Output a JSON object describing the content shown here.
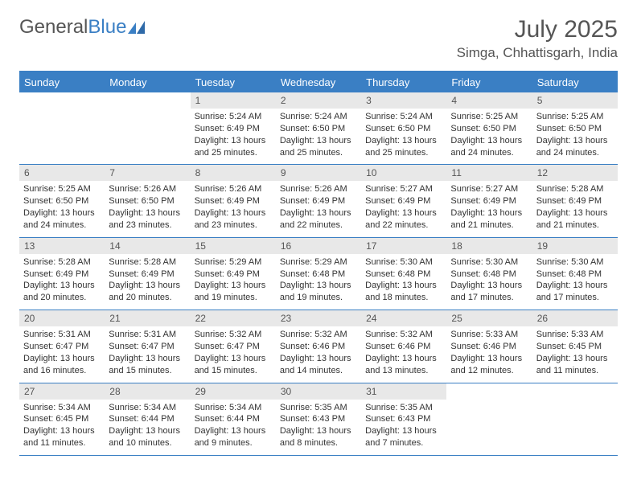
{
  "logo": {
    "text1": "General",
    "text2": "Blue"
  },
  "title": "July 2025",
  "location": "Simga, Chhattisgarh, India",
  "colors": {
    "accent": "#3a7fc4",
    "header_bg": "#3a7fc4",
    "daynum_bg": "#e8e8e8",
    "text": "#333333"
  },
  "day_headers": [
    "Sunday",
    "Monday",
    "Tuesday",
    "Wednesday",
    "Thursday",
    "Friday",
    "Saturday"
  ],
  "weeks": [
    [
      null,
      null,
      {
        "n": "1",
        "sr": "Sunrise: 5:24 AM",
        "ss": "Sunset: 6:49 PM",
        "d1": "Daylight: 13 hours",
        "d2": "and 25 minutes."
      },
      {
        "n": "2",
        "sr": "Sunrise: 5:24 AM",
        "ss": "Sunset: 6:50 PM",
        "d1": "Daylight: 13 hours",
        "d2": "and 25 minutes."
      },
      {
        "n": "3",
        "sr": "Sunrise: 5:24 AM",
        "ss": "Sunset: 6:50 PM",
        "d1": "Daylight: 13 hours",
        "d2": "and 25 minutes."
      },
      {
        "n": "4",
        "sr": "Sunrise: 5:25 AM",
        "ss": "Sunset: 6:50 PM",
        "d1": "Daylight: 13 hours",
        "d2": "and 24 minutes."
      },
      {
        "n": "5",
        "sr": "Sunrise: 5:25 AM",
        "ss": "Sunset: 6:50 PM",
        "d1": "Daylight: 13 hours",
        "d2": "and 24 minutes."
      }
    ],
    [
      {
        "n": "6",
        "sr": "Sunrise: 5:25 AM",
        "ss": "Sunset: 6:50 PM",
        "d1": "Daylight: 13 hours",
        "d2": "and 24 minutes."
      },
      {
        "n": "7",
        "sr": "Sunrise: 5:26 AM",
        "ss": "Sunset: 6:50 PM",
        "d1": "Daylight: 13 hours",
        "d2": "and 23 minutes."
      },
      {
        "n": "8",
        "sr": "Sunrise: 5:26 AM",
        "ss": "Sunset: 6:49 PM",
        "d1": "Daylight: 13 hours",
        "d2": "and 23 minutes."
      },
      {
        "n": "9",
        "sr": "Sunrise: 5:26 AM",
        "ss": "Sunset: 6:49 PM",
        "d1": "Daylight: 13 hours",
        "d2": "and 22 minutes."
      },
      {
        "n": "10",
        "sr": "Sunrise: 5:27 AM",
        "ss": "Sunset: 6:49 PM",
        "d1": "Daylight: 13 hours",
        "d2": "and 22 minutes."
      },
      {
        "n": "11",
        "sr": "Sunrise: 5:27 AM",
        "ss": "Sunset: 6:49 PM",
        "d1": "Daylight: 13 hours",
        "d2": "and 21 minutes."
      },
      {
        "n": "12",
        "sr": "Sunrise: 5:28 AM",
        "ss": "Sunset: 6:49 PM",
        "d1": "Daylight: 13 hours",
        "d2": "and 21 minutes."
      }
    ],
    [
      {
        "n": "13",
        "sr": "Sunrise: 5:28 AM",
        "ss": "Sunset: 6:49 PM",
        "d1": "Daylight: 13 hours",
        "d2": "and 20 minutes."
      },
      {
        "n": "14",
        "sr": "Sunrise: 5:28 AM",
        "ss": "Sunset: 6:49 PM",
        "d1": "Daylight: 13 hours",
        "d2": "and 20 minutes."
      },
      {
        "n": "15",
        "sr": "Sunrise: 5:29 AM",
        "ss": "Sunset: 6:49 PM",
        "d1": "Daylight: 13 hours",
        "d2": "and 19 minutes."
      },
      {
        "n": "16",
        "sr": "Sunrise: 5:29 AM",
        "ss": "Sunset: 6:48 PM",
        "d1": "Daylight: 13 hours",
        "d2": "and 19 minutes."
      },
      {
        "n": "17",
        "sr": "Sunrise: 5:30 AM",
        "ss": "Sunset: 6:48 PM",
        "d1": "Daylight: 13 hours",
        "d2": "and 18 minutes."
      },
      {
        "n": "18",
        "sr": "Sunrise: 5:30 AM",
        "ss": "Sunset: 6:48 PM",
        "d1": "Daylight: 13 hours",
        "d2": "and 17 minutes."
      },
      {
        "n": "19",
        "sr": "Sunrise: 5:30 AM",
        "ss": "Sunset: 6:48 PM",
        "d1": "Daylight: 13 hours",
        "d2": "and 17 minutes."
      }
    ],
    [
      {
        "n": "20",
        "sr": "Sunrise: 5:31 AM",
        "ss": "Sunset: 6:47 PM",
        "d1": "Daylight: 13 hours",
        "d2": "and 16 minutes."
      },
      {
        "n": "21",
        "sr": "Sunrise: 5:31 AM",
        "ss": "Sunset: 6:47 PM",
        "d1": "Daylight: 13 hours",
        "d2": "and 15 minutes."
      },
      {
        "n": "22",
        "sr": "Sunrise: 5:32 AM",
        "ss": "Sunset: 6:47 PM",
        "d1": "Daylight: 13 hours",
        "d2": "and 15 minutes."
      },
      {
        "n": "23",
        "sr": "Sunrise: 5:32 AM",
        "ss": "Sunset: 6:46 PM",
        "d1": "Daylight: 13 hours",
        "d2": "and 14 minutes."
      },
      {
        "n": "24",
        "sr": "Sunrise: 5:32 AM",
        "ss": "Sunset: 6:46 PM",
        "d1": "Daylight: 13 hours",
        "d2": "and 13 minutes."
      },
      {
        "n": "25",
        "sr": "Sunrise: 5:33 AM",
        "ss": "Sunset: 6:46 PM",
        "d1": "Daylight: 13 hours",
        "d2": "and 12 minutes."
      },
      {
        "n": "26",
        "sr": "Sunrise: 5:33 AM",
        "ss": "Sunset: 6:45 PM",
        "d1": "Daylight: 13 hours",
        "d2": "and 11 minutes."
      }
    ],
    [
      {
        "n": "27",
        "sr": "Sunrise: 5:34 AM",
        "ss": "Sunset: 6:45 PM",
        "d1": "Daylight: 13 hours",
        "d2": "and 11 minutes."
      },
      {
        "n": "28",
        "sr": "Sunrise: 5:34 AM",
        "ss": "Sunset: 6:44 PM",
        "d1": "Daylight: 13 hours",
        "d2": "and 10 minutes."
      },
      {
        "n": "29",
        "sr": "Sunrise: 5:34 AM",
        "ss": "Sunset: 6:44 PM",
        "d1": "Daylight: 13 hours",
        "d2": "and 9 minutes."
      },
      {
        "n": "30",
        "sr": "Sunrise: 5:35 AM",
        "ss": "Sunset: 6:43 PM",
        "d1": "Daylight: 13 hours",
        "d2": "and 8 minutes."
      },
      {
        "n": "31",
        "sr": "Sunrise: 5:35 AM",
        "ss": "Sunset: 6:43 PM",
        "d1": "Daylight: 13 hours",
        "d2": "and 7 minutes."
      },
      null,
      null
    ]
  ]
}
